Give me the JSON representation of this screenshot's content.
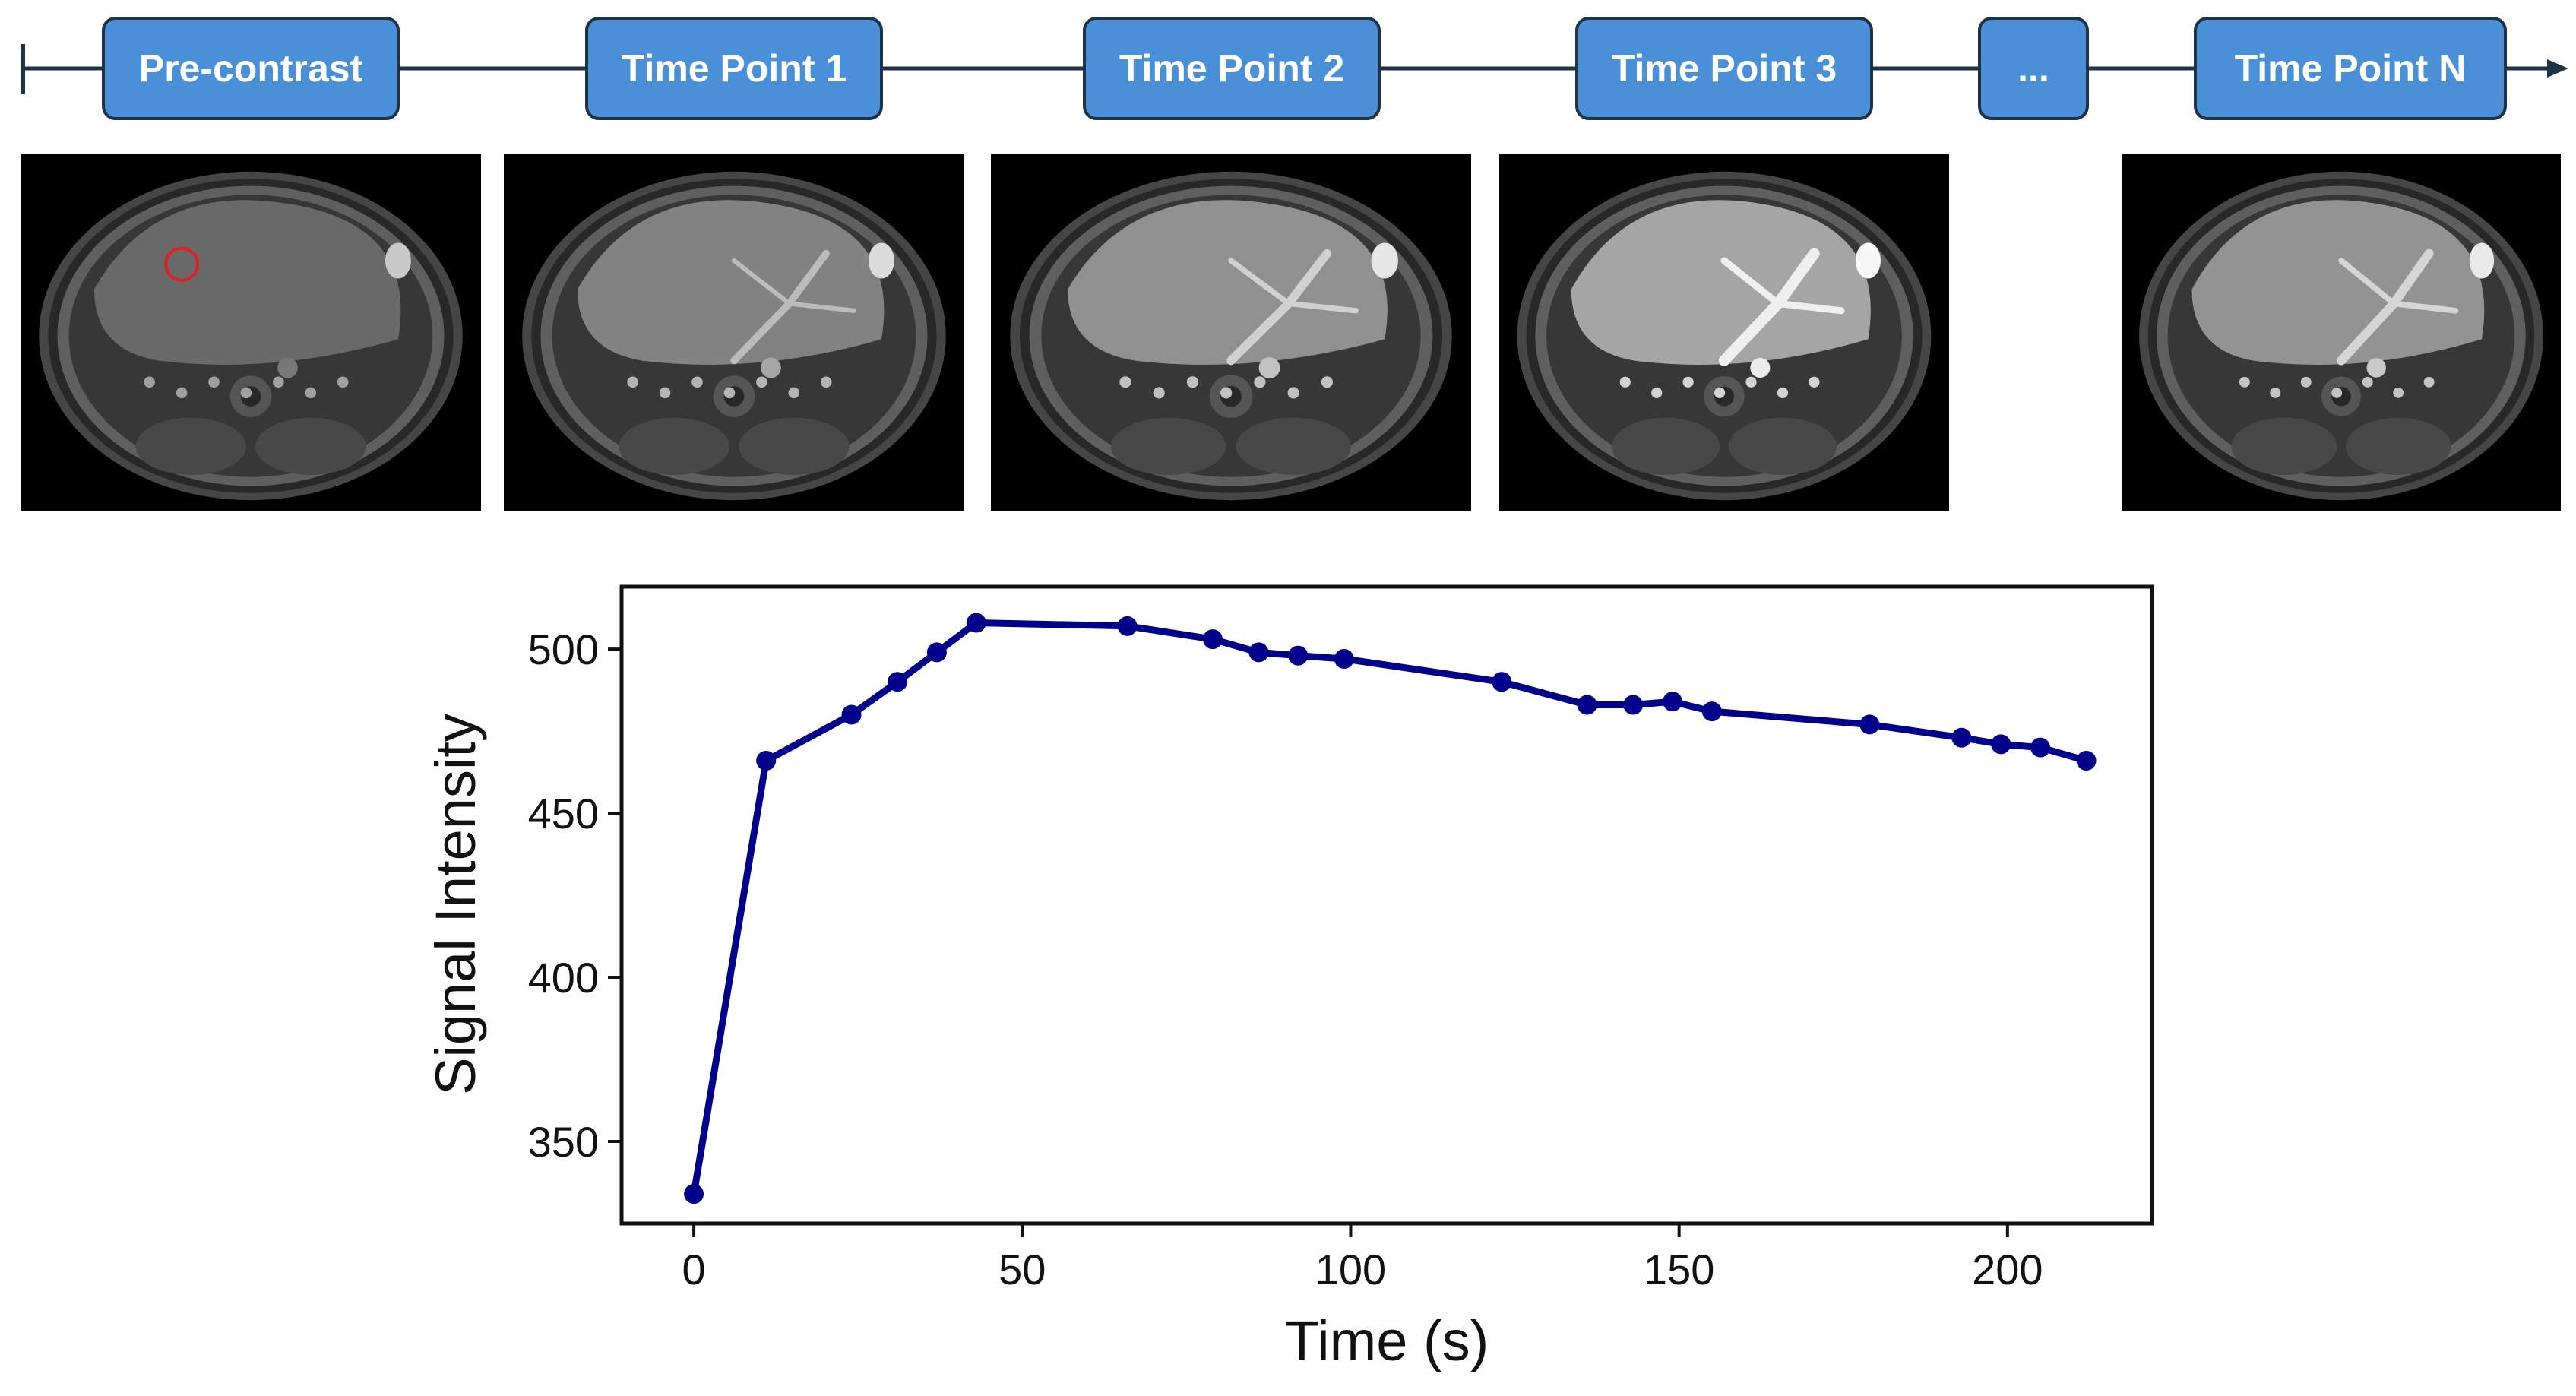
{
  "timeline": {
    "labels": [
      "Pre-contrast",
      "Time Point 1",
      "Time Point 2",
      "Time Point 3",
      "...",
      "Time Point N"
    ]
  },
  "scans": [
    {
      "name": "pre-contrast",
      "enhance": 0.0,
      "roi": true
    },
    {
      "name": "time-point-1",
      "enhance": 0.35,
      "roi": false
    },
    {
      "name": "time-point-2",
      "enhance": 0.55,
      "roi": false
    },
    {
      "name": "time-point-3",
      "enhance": 0.85,
      "roi": false
    },
    {
      "name": "time-point-n",
      "enhance": 0.6,
      "roi": false
    }
  ],
  "colors": {
    "box_fill": "#4a90d9",
    "box_border": "#1f3347",
    "line": "#00008b",
    "roi": "#e02020"
  },
  "chart_data": {
    "type": "line",
    "title": "",
    "xlabel": "Time (s)",
    "ylabel": "Signal Intensity",
    "xlim": [
      -11,
      222
    ],
    "ylim": [
      325,
      519
    ],
    "xticks": [
      0,
      50,
      100,
      150,
      200
    ],
    "yticks": [
      350,
      400,
      450,
      500
    ],
    "x": [
      0,
      11,
      24,
      31,
      37,
      43,
      66,
      79,
      86,
      92,
      99,
      123,
      136,
      143,
      149,
      155,
      179,
      193,
      199,
      205,
      212
    ],
    "y": [
      334,
      466,
      480,
      490,
      499,
      508,
      507,
      503,
      499,
      498,
      497,
      490,
      483,
      483,
      484,
      481,
      477,
      473,
      471,
      470,
      466
    ]
  }
}
